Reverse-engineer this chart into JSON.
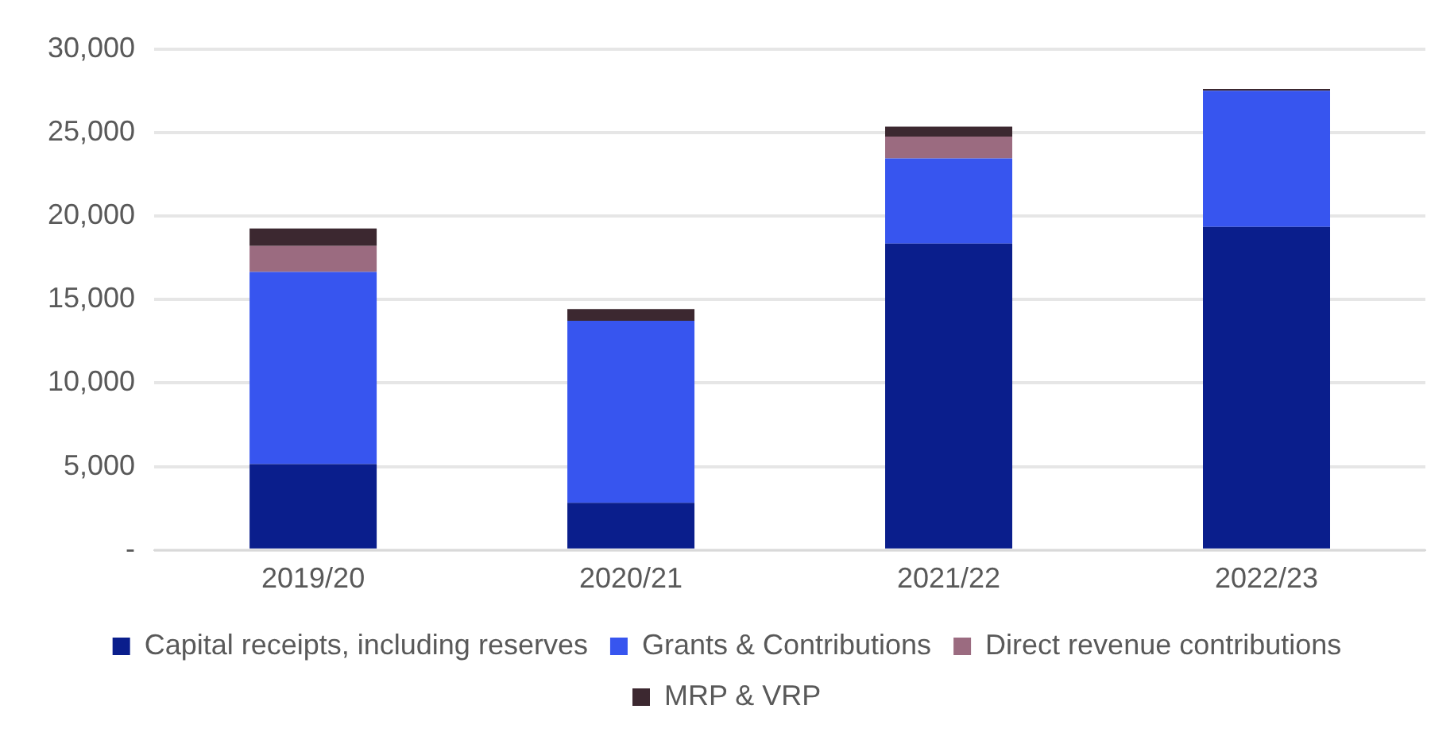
{
  "chart_data": {
    "type": "bar",
    "stacked": true,
    "categories": [
      "2019/20",
      "2020/21",
      "2021/22",
      "2022/23"
    ],
    "series": [
      {
        "name": "Capital receipts, including reserves",
        "color": "#0a1e8c",
        "values": [
          5150,
          2830,
          18350,
          19350
        ]
      },
      {
        "name": "Grants & Contributions",
        "color": "#3755ef",
        "values": [
          11500,
          10900,
          5100,
          8150
        ]
      },
      {
        "name": "Direct revenue contributions",
        "color": "#9b6b80",
        "values": [
          1550,
          0,
          1300,
          0
        ]
      },
      {
        "name": "MRP & VRP",
        "color": "#3c2830",
        "values": [
          1050,
          700,
          600,
          100
        ]
      }
    ],
    "ylim": [
      0,
      30000
    ],
    "yticks": [
      {
        "value": 0,
        "label": "-"
      },
      {
        "value": 5000,
        "label": "5,000"
      },
      {
        "value": 10000,
        "label": "10,000"
      },
      {
        "value": 15000,
        "label": "15,000"
      },
      {
        "value": 20000,
        "label": "20,000"
      },
      {
        "value": 25000,
        "label": "25,000"
      },
      {
        "value": 30000,
        "label": "30,000"
      }
    ],
    "grid": "y",
    "legend": "bottom"
  }
}
